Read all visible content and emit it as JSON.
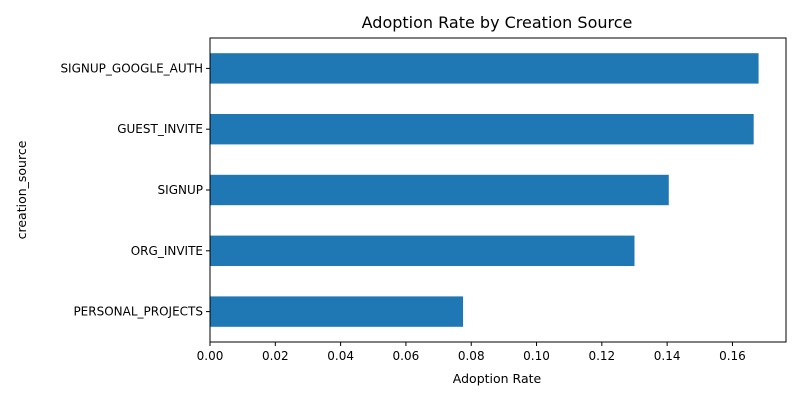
{
  "chart_data": {
    "type": "bar",
    "orientation": "horizontal",
    "title": "Adoption Rate by Creation Source",
    "xlabel": "Adoption Rate",
    "ylabel": "creation_source",
    "categories": [
      "PERSONAL_PROJECTS",
      "ORG_INVITE",
      "SIGNUP",
      "GUEST_INVITE",
      "SIGNUP_GOOGLE_AUTH"
    ],
    "values": [
      0.0775,
      0.13,
      0.1405,
      0.1665,
      0.168
    ],
    "xlim": [
      0,
      0.1764
    ],
    "xticks": [
      0.0,
      0.02,
      0.04,
      0.06,
      0.08,
      0.1,
      0.12,
      0.14,
      0.16
    ],
    "xtick_labels": [
      "0.00",
      "0.02",
      "0.04",
      "0.06",
      "0.08",
      "0.10",
      "0.12",
      "0.14",
      "0.16"
    ],
    "grid": false,
    "bar_color": "#1f77b4"
  }
}
